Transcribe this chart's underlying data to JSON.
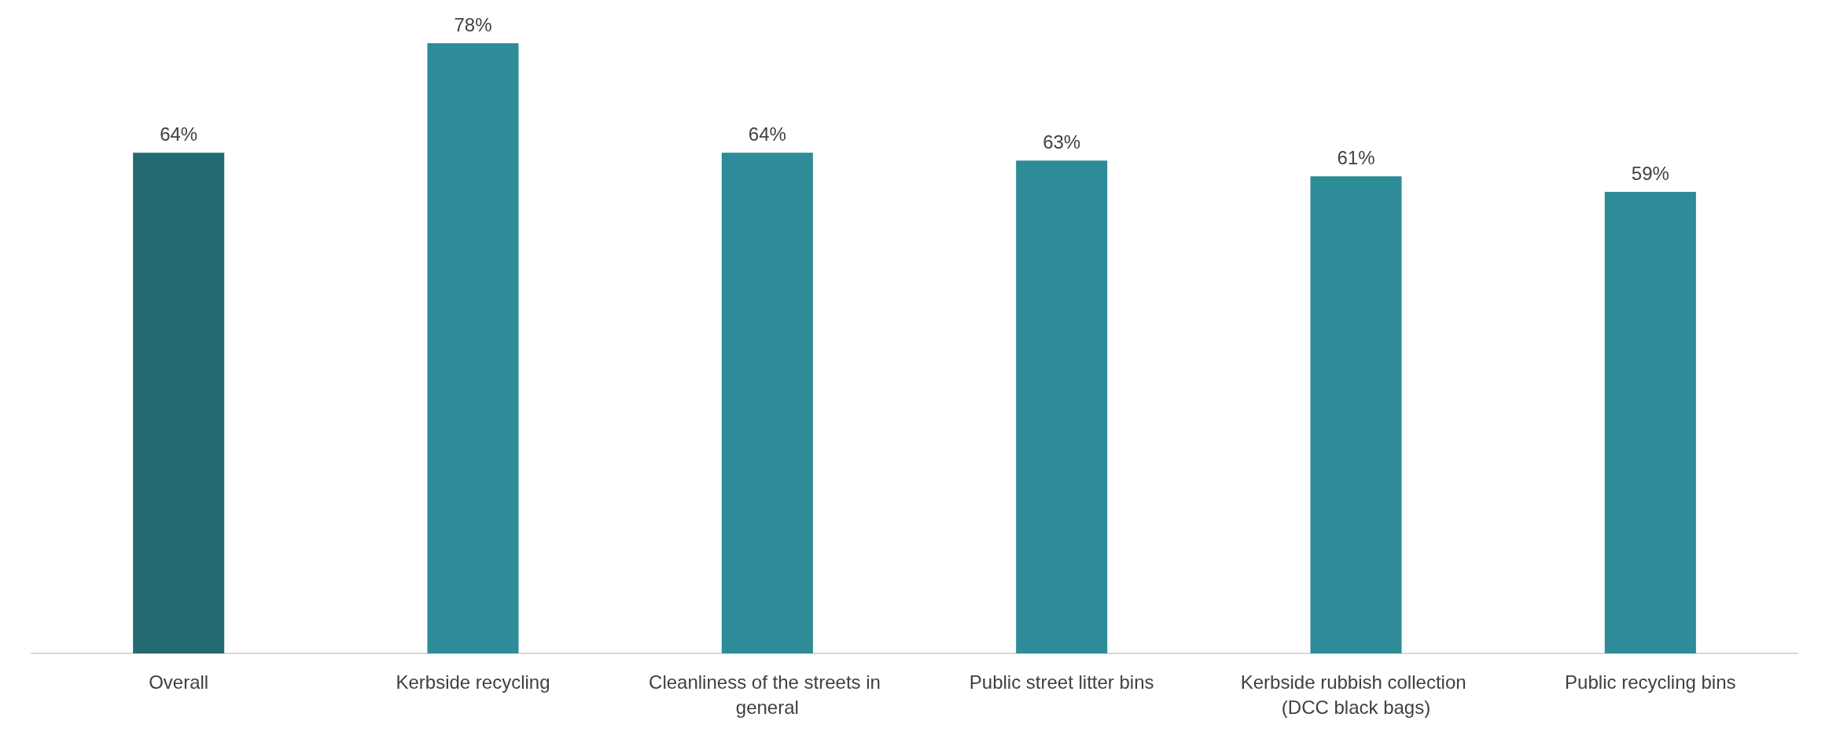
{
  "chart_data": {
    "type": "bar",
    "categories": [
      "Overall",
      "Kerbside recycling",
      "Cleanliness of the streets in general",
      "Public street litter bins",
      "Kerbside rubbish collection (DCC black bags)",
      "Public recycling bins"
    ],
    "values": [
      64,
      78,
      64,
      63,
      61,
      59
    ],
    "colors": [
      "#236a70",
      "#2e8b98",
      "#2e8b98",
      "#2e8b98",
      "#2e8b98",
      "#2e8b98"
    ],
    "value_labels": [
      "64%",
      "78%",
      "64%",
      "63%",
      "61%",
      "59%"
    ]
  }
}
